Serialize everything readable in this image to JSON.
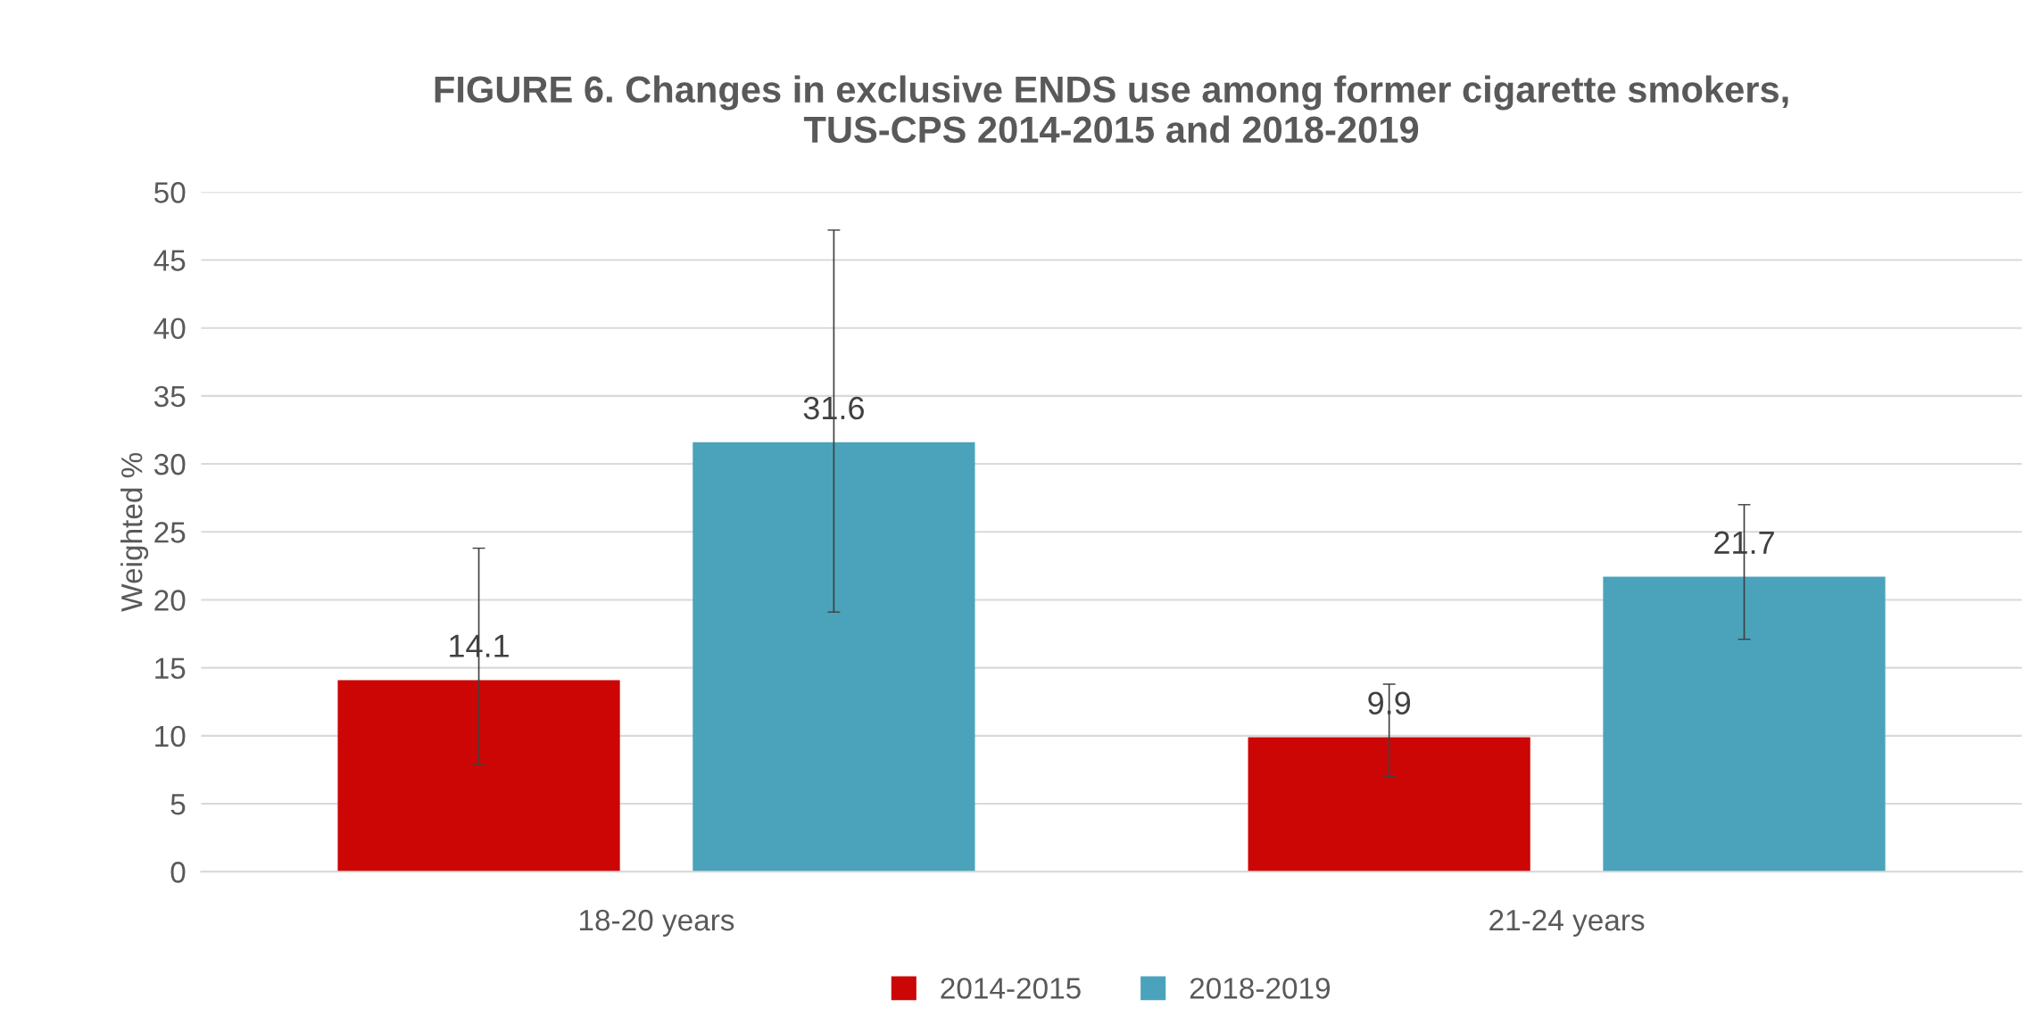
{
  "chart_data": {
    "type": "bar",
    "title": "FIGURE 6. Changes in exclusive ENDS use among former cigarette smokers,\nTUS-CPS 2014-2015 and 2018-2019",
    "ylabel": "Weighted %",
    "categories": [
      "18-20 years",
      "21-24 years"
    ],
    "series": [
      {
        "name": "2014-2015",
        "color": "#cc0605",
        "values": [
          14.1,
          9.9
        ],
        "errors": [
          [
            7.9,
            23.8
          ],
          [
            7.0,
            13.8
          ]
        ]
      },
      {
        "name": "2018-2019",
        "color": "#4aa3bb",
        "values": [
          31.6,
          21.7
        ],
        "errors": [
          [
            19.1,
            47.2
          ],
          [
            17.1,
            27.0
          ]
        ]
      }
    ],
    "ylim": [
      0,
      50
    ],
    "yticks": [
      0,
      5,
      10,
      15,
      20,
      25,
      30,
      35,
      40,
      45,
      50
    ],
    "grid": "y",
    "legend": "bottom",
    "data_labels": true
  }
}
